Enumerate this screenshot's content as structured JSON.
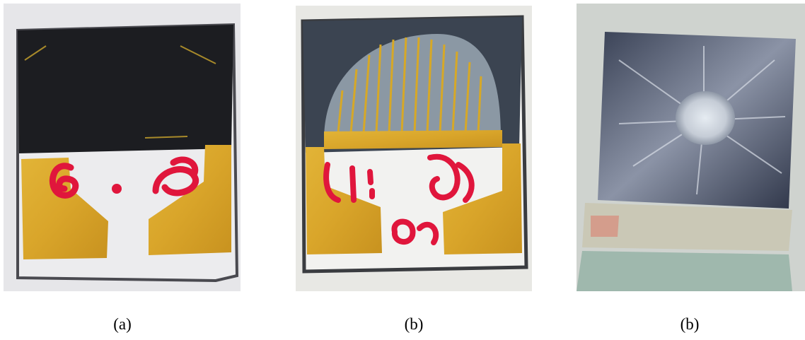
{
  "figure": {
    "panels": [
      {
        "caption": "(a)"
      },
      {
        "caption": "(b)"
      },
      {
        "caption": "(b)"
      }
    ]
  }
}
